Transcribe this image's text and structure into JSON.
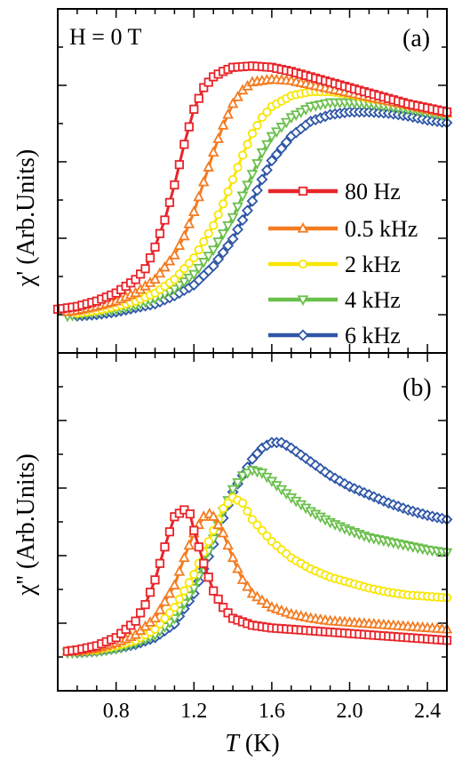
{
  "figure": {
    "panel_a_label": "(a)",
    "panel_b_label": "(b)",
    "field_annotation": "H = 0 T",
    "ylabel_a": "χ' (Arb.Units)",
    "ylabel_b": "χ'' (Arb.Units)",
    "xlabel_italic": "T",
    "xlabel_unit": " (K)"
  },
  "chart_data": [
    {
      "type": "line",
      "panel": "(a)",
      "annotation": "H = 0 T",
      "ylabel": "χ' (Arb.Units)",
      "y_tick_labels": "none",
      "xlim": [
        0.5,
        2.5
      ],
      "ylim": [
        0,
        1
      ],
      "legend_position": "center-right",
      "series": [
        {
          "name": "80 Hz",
          "color": "#e8242a",
          "marker": "square",
          "points": [
            [
              0.5,
              0.04
            ],
            [
              0.6,
              0.05
            ],
            [
              0.7,
              0.07
            ],
            [
              0.8,
              0.1
            ],
            [
              0.9,
              0.15
            ],
            [
              0.95,
              0.19
            ],
            [
              1.0,
              0.27
            ],
            [
              1.05,
              0.37
            ],
            [
              1.1,
              0.5
            ],
            [
              1.15,
              0.65
            ],
            [
              1.2,
              0.78
            ],
            [
              1.25,
              0.86
            ],
            [
              1.3,
              0.9
            ],
            [
              1.35,
              0.92
            ],
            [
              1.4,
              0.935
            ],
            [
              1.5,
              0.94
            ],
            [
              1.6,
              0.935
            ],
            [
              1.7,
              0.92
            ],
            [
              1.8,
              0.9
            ],
            [
              1.9,
              0.88
            ],
            [
              2.0,
              0.86
            ],
            [
              2.1,
              0.84
            ],
            [
              2.2,
              0.82
            ],
            [
              2.3,
              0.8
            ],
            [
              2.4,
              0.785
            ],
            [
              2.5,
              0.77
            ]
          ]
        },
        {
          "name": "0.5 kHz",
          "color": "#f47b20",
          "marker": "triangle-up",
          "points": [
            [
              0.55,
              0.03
            ],
            [
              0.6,
              0.035
            ],
            [
              0.7,
              0.05
            ],
            [
              0.8,
              0.07
            ],
            [
              0.9,
              0.1
            ],
            [
              1.0,
              0.15
            ],
            [
              1.1,
              0.24
            ],
            [
              1.15,
              0.31
            ],
            [
              1.2,
              0.4
            ],
            [
              1.25,
              0.51
            ],
            [
              1.3,
              0.62
            ],
            [
              1.35,
              0.72
            ],
            [
              1.4,
              0.8
            ],
            [
              1.45,
              0.85
            ],
            [
              1.5,
              0.88
            ],
            [
              1.6,
              0.89
            ],
            [
              1.7,
              0.885
            ],
            [
              1.8,
              0.87
            ],
            [
              1.9,
              0.855
            ],
            [
              2.0,
              0.84
            ],
            [
              2.1,
              0.825
            ],
            [
              2.2,
              0.81
            ],
            [
              2.3,
              0.795
            ],
            [
              2.4,
              0.78
            ],
            [
              2.5,
              0.765
            ]
          ]
        },
        {
          "name": "2 kHz",
          "color": "#f7e600",
          "marker": "circle",
          "points": [
            [
              0.6,
              0.025
            ],
            [
              0.7,
              0.035
            ],
            [
              0.8,
              0.05
            ],
            [
              0.9,
              0.07
            ],
            [
              1.0,
              0.1
            ],
            [
              1.1,
              0.15
            ],
            [
              1.2,
              0.23
            ],
            [
              1.3,
              0.35
            ],
            [
              1.35,
              0.43
            ],
            [
              1.4,
              0.52
            ],
            [
              1.45,
              0.61
            ],
            [
              1.5,
              0.69
            ],
            [
              1.55,
              0.75
            ],
            [
              1.6,
              0.79
            ],
            [
              1.7,
              0.83
            ],
            [
              1.8,
              0.845
            ],
            [
              1.9,
              0.845
            ],
            [
              2.0,
              0.835
            ],
            [
              2.1,
              0.82
            ],
            [
              2.2,
              0.81
            ],
            [
              2.3,
              0.795
            ],
            [
              2.4,
              0.78
            ],
            [
              2.5,
              0.77
            ]
          ]
        },
        {
          "name": "4 kHz",
          "color": "#6abf4b",
          "marker": "triangle-down",
          "points": [
            [
              0.55,
              0.015
            ],
            [
              0.6,
              0.02
            ],
            [
              0.7,
              0.03
            ],
            [
              0.8,
              0.04
            ],
            [
              0.9,
              0.055
            ],
            [
              1.0,
              0.08
            ],
            [
              1.1,
              0.115
            ],
            [
              1.2,
              0.17
            ],
            [
              1.3,
              0.26
            ],
            [
              1.4,
              0.38
            ],
            [
              1.45,
              0.46
            ],
            [
              1.5,
              0.54
            ],
            [
              1.55,
              0.62
            ],
            [
              1.6,
              0.68
            ],
            [
              1.7,
              0.75
            ],
            [
              1.8,
              0.79
            ],
            [
              1.9,
              0.805
            ],
            [
              2.0,
              0.805
            ],
            [
              2.1,
              0.8
            ],
            [
              2.2,
              0.79
            ],
            [
              2.3,
              0.78
            ],
            [
              2.4,
              0.77
            ],
            [
              2.5,
              0.755
            ]
          ]
        },
        {
          "name": "6 kHz",
          "color": "#2e56a6",
          "marker": "diamond",
          "points": [
            [
              0.6,
              0.015
            ],
            [
              0.7,
              0.02
            ],
            [
              0.8,
              0.03
            ],
            [
              0.9,
              0.045
            ],
            [
              1.0,
              0.06
            ],
            [
              1.1,
              0.09
            ],
            [
              1.2,
              0.13
            ],
            [
              1.3,
              0.2
            ],
            [
              1.4,
              0.3
            ],
            [
              1.5,
              0.44
            ],
            [
              1.55,
              0.52
            ],
            [
              1.6,
              0.59
            ],
            [
              1.7,
              0.68
            ],
            [
              1.8,
              0.735
            ],
            [
              1.9,
              0.76
            ],
            [
              2.0,
              0.77
            ],
            [
              2.1,
              0.77
            ],
            [
              2.2,
              0.765
            ],
            [
              2.3,
              0.755
            ],
            [
              2.4,
              0.74
            ],
            [
              2.5,
              0.73
            ]
          ]
        }
      ]
    },
    {
      "type": "line",
      "panel": "(b)",
      "ylabel": "χ'' (Arb.Units)",
      "xlabel": "T (K)",
      "y_tick_labels": "none",
      "xlim": [
        0.5,
        2.5
      ],
      "ylim": [
        0,
        1
      ],
      "x_ticks": [
        "0.8",
        "1.2",
        "1.6",
        "2.0",
        "2.4"
      ],
      "series": [
        {
          "name": "80 Hz",
          "color": "#e8242a",
          "marker": "square",
          "points": [
            [
              0.55,
              0.04
            ],
            [
              0.6,
              0.045
            ],
            [
              0.7,
              0.06
            ],
            [
              0.8,
              0.09
            ],
            [
              0.9,
              0.15
            ],
            [
              0.95,
              0.21
            ],
            [
              1.0,
              0.3
            ],
            [
              1.05,
              0.42
            ],
            [
              1.1,
              0.53
            ],
            [
              1.15,
              0.555
            ],
            [
              1.18,
              0.54
            ],
            [
              1.2,
              0.48
            ],
            [
              1.25,
              0.36
            ],
            [
              1.3,
              0.26
            ],
            [
              1.35,
              0.2
            ],
            [
              1.4,
              0.16
            ],
            [
              1.5,
              0.135
            ],
            [
              1.6,
              0.125
            ],
            [
              1.7,
              0.12
            ],
            [
              1.8,
              0.115
            ],
            [
              1.9,
              0.11
            ],
            [
              2.0,
              0.105
            ],
            [
              2.1,
              0.1
            ],
            [
              2.2,
              0.095
            ],
            [
              2.3,
              0.09
            ],
            [
              2.4,
              0.085
            ],
            [
              2.5,
              0.08
            ]
          ]
        },
        {
          "name": "0.5 kHz",
          "color": "#f47b20",
          "marker": "triangle-up",
          "points": [
            [
              0.55,
              0.04
            ],
            [
              0.6,
              0.04
            ],
            [
              0.7,
              0.05
            ],
            [
              0.8,
              0.07
            ],
            [
              0.9,
              0.1
            ],
            [
              1.0,
              0.16
            ],
            [
              1.1,
              0.28
            ],
            [
              1.15,
              0.38
            ],
            [
              1.2,
              0.47
            ],
            [
              1.25,
              0.53
            ],
            [
              1.28,
              0.54
            ],
            [
              1.3,
              0.53
            ],
            [
              1.35,
              0.47
            ],
            [
              1.4,
              0.38
            ],
            [
              1.45,
              0.3
            ],
            [
              1.5,
              0.25
            ],
            [
              1.6,
              0.2
            ],
            [
              1.7,
              0.175
            ],
            [
              1.8,
              0.16
            ],
            [
              1.9,
              0.15
            ],
            [
              2.0,
              0.145
            ],
            [
              2.1,
              0.14
            ],
            [
              2.2,
              0.135
            ],
            [
              2.3,
              0.13
            ],
            [
              2.4,
              0.125
            ],
            [
              2.5,
              0.12
            ]
          ]
        },
        {
          "name": "2 kHz",
          "color": "#f7e600",
          "marker": "circle",
          "points": [
            [
              0.6,
              0.04
            ],
            [
              0.7,
              0.045
            ],
            [
              0.8,
              0.06
            ],
            [
              0.9,
              0.08
            ],
            [
              1.0,
              0.12
            ],
            [
              1.1,
              0.2
            ],
            [
              1.2,
              0.32
            ],
            [
              1.3,
              0.48
            ],
            [
              1.35,
              0.56
            ],
            [
              1.4,
              0.6
            ],
            [
              1.45,
              0.58
            ],
            [
              1.5,
              0.52
            ],
            [
              1.6,
              0.44
            ],
            [
              1.7,
              0.38
            ],
            [
              1.8,
              0.34
            ],
            [
              1.9,
              0.31
            ],
            [
              2.0,
              0.29
            ],
            [
              2.1,
              0.27
            ],
            [
              2.2,
              0.255
            ],
            [
              2.3,
              0.245
            ],
            [
              2.4,
              0.24
            ],
            [
              2.5,
              0.235
            ]
          ]
        },
        {
          "name": "4 kHz",
          "color": "#6abf4b",
          "marker": "triangle-down",
          "points": [
            [
              0.55,
              0.035
            ],
            [
              0.6,
              0.035
            ],
            [
              0.7,
              0.04
            ],
            [
              0.8,
              0.05
            ],
            [
              0.9,
              0.07
            ],
            [
              1.0,
              0.1
            ],
            [
              1.1,
              0.16
            ],
            [
              1.2,
              0.27
            ],
            [
              1.3,
              0.45
            ],
            [
              1.35,
              0.55
            ],
            [
              1.4,
              0.63
            ],
            [
              1.45,
              0.68
            ],
            [
              1.5,
              0.7
            ],
            [
              1.55,
              0.69
            ],
            [
              1.6,
              0.66
            ],
            [
              1.7,
              0.6
            ],
            [
              1.8,
              0.55
            ],
            [
              1.9,
              0.51
            ],
            [
              2.0,
              0.48
            ],
            [
              2.1,
              0.455
            ],
            [
              2.2,
              0.44
            ],
            [
              2.3,
              0.425
            ],
            [
              2.4,
              0.41
            ],
            [
              2.5,
              0.4
            ]
          ]
        },
        {
          "name": "6 kHz",
          "color": "#2e56a6",
          "marker": "diamond",
          "points": [
            [
              0.6,
              0.035
            ],
            [
              0.7,
              0.04
            ],
            [
              0.8,
              0.05
            ],
            [
              0.9,
              0.065
            ],
            [
              1.0,
              0.09
            ],
            [
              1.1,
              0.14
            ],
            [
              1.2,
              0.25
            ],
            [
              1.3,
              0.43
            ],
            [
              1.4,
              0.62
            ],
            [
              1.5,
              0.74
            ],
            [
              1.55,
              0.78
            ],
            [
              1.6,
              0.8
            ],
            [
              1.65,
              0.8
            ],
            [
              1.7,
              0.78
            ],
            [
              1.8,
              0.73
            ],
            [
              1.9,
              0.68
            ],
            [
              2.0,
              0.64
            ],
            [
              2.1,
              0.61
            ],
            [
              2.2,
              0.58
            ],
            [
              2.3,
              0.555
            ],
            [
              2.4,
              0.535
            ],
            [
              2.5,
              0.52
            ]
          ]
        }
      ]
    }
  ]
}
